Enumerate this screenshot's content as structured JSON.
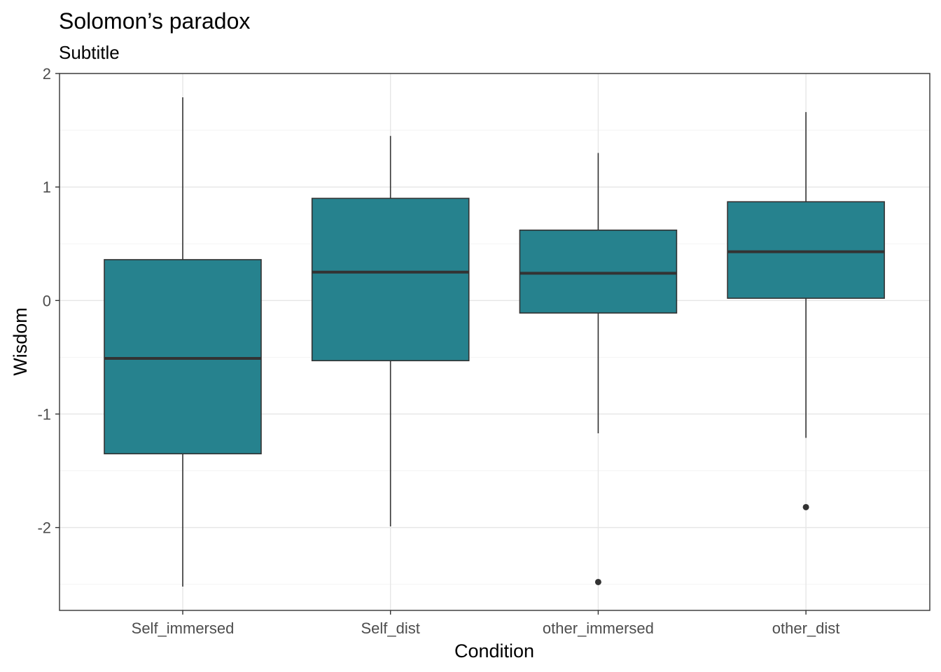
{
  "chart_data": {
    "type": "boxplot",
    "title": "Solomon’s paradox",
    "subtitle": "Subtitle",
    "xlabel": "Condition",
    "ylabel": "Wisdom",
    "ylim": [
      -2.73,
      2.0
    ],
    "yticks": [
      -2,
      -1,
      0,
      1,
      2
    ],
    "ytick_labels": [
      "-2",
      "-1",
      "0",
      "1",
      "2"
    ],
    "grid": true,
    "fill_color": "#26828E",
    "line_color": "#333333",
    "categories": [
      "Self_immersed",
      "Self_dist",
      "other_immersed",
      "other_dist"
    ],
    "boxes": [
      {
        "category": "Self_immersed",
        "min": -2.52,
        "q1": -1.35,
        "median": -0.51,
        "q3": 0.36,
        "max": 1.79,
        "outliers": []
      },
      {
        "category": "Self_dist",
        "min": -1.99,
        "q1": -0.53,
        "median": 0.25,
        "q3": 0.9,
        "max": 1.45,
        "outliers": []
      },
      {
        "category": "other_immersed",
        "min": -1.17,
        "q1": -0.11,
        "median": 0.24,
        "q3": 0.62,
        "max": 1.3,
        "outliers": [
          -2.48
        ]
      },
      {
        "category": "other_dist",
        "min": -1.21,
        "q1": 0.02,
        "median": 0.43,
        "q3": 0.87,
        "max": 1.66,
        "outliers": [
          -1.82
        ]
      }
    ]
  }
}
